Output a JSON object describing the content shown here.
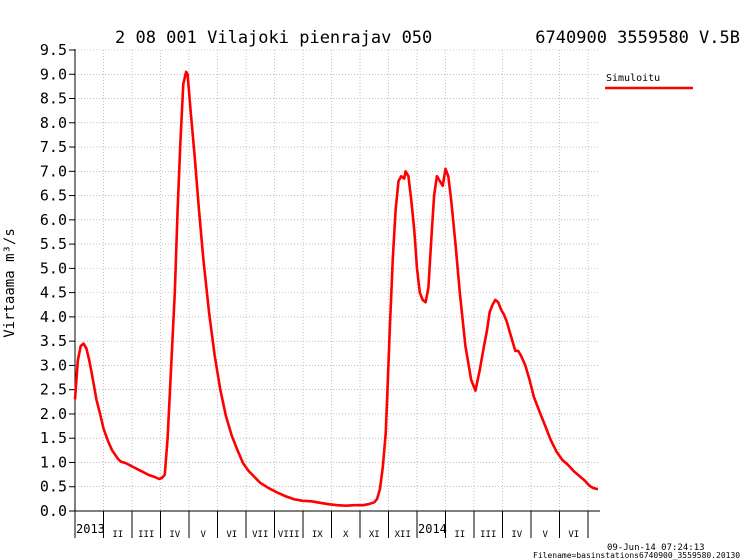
{
  "header": {
    "title": "2 08 001 Vilajoki pienrajav 050",
    "code": "6740900 3559580 V.5B"
  },
  "footer": {
    "date": "09-Jun-14 07:24:13",
    "filename": "Filename=basinstations6740900_3559580.20130"
  },
  "colors": {
    "series": "#ff0000",
    "grid": "#9a9a9a",
    "axis": "#000000"
  },
  "chart_data": {
    "type": "line",
    "ylabel": "Virtaama m³/s",
    "ylim": [
      0.0,
      9.5
    ],
    "yticks": [
      "0.0",
      "0.5",
      "1.0",
      "1.5",
      "2.0",
      "2.5",
      "3.0",
      "3.5",
      "4.0",
      "4.5",
      "5.0",
      "5.5",
      "6.0",
      "6.5",
      "7.0",
      "7.5",
      "8.0",
      "8.5",
      "9.0",
      "9.5"
    ],
    "x_unit": "month index (0 = start of Jan 2013)",
    "xlim": [
      0,
      18.35
    ],
    "month_labels": [
      "2013",
      "II",
      "III",
      "IV",
      "V",
      "VI",
      "VII",
      "VIII",
      "IX",
      "X",
      "XI",
      "XII",
      "2014",
      "II",
      "III",
      "IV",
      "V",
      "VI"
    ],
    "legend": {
      "position": "top-right",
      "entries": [
        "Simuloitu"
      ]
    },
    "grid": true,
    "series": [
      {
        "name": "Simuloitu",
        "color": "#ff0000",
        "points": [
          [
            0.0,
            2.3
          ],
          [
            0.1,
            3.1
          ],
          [
            0.2,
            3.4
          ],
          [
            0.3,
            3.45
          ],
          [
            0.4,
            3.35
          ],
          [
            0.5,
            3.1
          ],
          [
            0.6,
            2.8
          ],
          [
            0.75,
            2.3
          ],
          [
            0.9,
            1.95
          ],
          [
            1.0,
            1.7
          ],
          [
            1.15,
            1.45
          ],
          [
            1.3,
            1.25
          ],
          [
            1.5,
            1.08
          ],
          [
            1.6,
            1.02
          ],
          [
            1.8,
            0.98
          ],
          [
            2.0,
            0.92
          ],
          [
            2.2,
            0.86
          ],
          [
            2.4,
            0.8
          ],
          [
            2.6,
            0.74
          ],
          [
            2.8,
            0.7
          ],
          [
            2.95,
            0.66
          ],
          [
            3.05,
            0.68
          ],
          [
            3.15,
            0.75
          ],
          [
            3.25,
            1.5
          ],
          [
            3.35,
            2.7
          ],
          [
            3.5,
            4.5
          ],
          [
            3.6,
            6.2
          ],
          [
            3.7,
            7.6
          ],
          [
            3.8,
            8.8
          ],
          [
            3.9,
            9.05
          ],
          [
            3.95,
            9.0
          ],
          [
            4.05,
            8.3
          ],
          [
            4.2,
            7.3
          ],
          [
            4.35,
            6.2
          ],
          [
            4.5,
            5.2
          ],
          [
            4.7,
            4.1
          ],
          [
            4.9,
            3.2
          ],
          [
            5.1,
            2.5
          ],
          [
            5.3,
            1.95
          ],
          [
            5.5,
            1.55
          ],
          [
            5.7,
            1.25
          ],
          [
            5.9,
            0.98
          ],
          [
            6.1,
            0.82
          ],
          [
            6.3,
            0.7
          ],
          [
            6.5,
            0.58
          ],
          [
            6.8,
            0.47
          ],
          [
            7.1,
            0.38
          ],
          [
            7.4,
            0.3
          ],
          [
            7.7,
            0.24
          ],
          [
            8.0,
            0.21
          ],
          [
            8.3,
            0.2
          ],
          [
            8.6,
            0.17
          ],
          [
            8.9,
            0.14
          ],
          [
            9.2,
            0.12
          ],
          [
            9.5,
            0.11
          ],
          [
            9.8,
            0.12
          ],
          [
            10.1,
            0.12
          ],
          [
            10.3,
            0.14
          ],
          [
            10.5,
            0.18
          ],
          [
            10.6,
            0.25
          ],
          [
            10.7,
            0.45
          ],
          [
            10.8,
            0.9
          ],
          [
            10.9,
            1.6
          ],
          [
            10.95,
            2.3
          ],
          [
            11.05,
            3.8
          ],
          [
            11.15,
            5.2
          ],
          [
            11.25,
            6.2
          ],
          [
            11.35,
            6.8
          ],
          [
            11.45,
            6.9
          ],
          [
            11.55,
            6.85
          ],
          [
            11.6,
            7.0
          ],
          [
            11.7,
            6.9
          ],
          [
            11.8,
            6.4
          ],
          [
            11.9,
            5.8
          ],
          [
            12.0,
            5.0
          ],
          [
            12.1,
            4.5
          ],
          [
            12.2,
            4.35
          ],
          [
            12.3,
            4.3
          ],
          [
            12.4,
            4.6
          ],
          [
            12.5,
            5.6
          ],
          [
            12.6,
            6.5
          ],
          [
            12.7,
            6.9
          ],
          [
            12.8,
            6.8
          ],
          [
            12.9,
            6.7
          ],
          [
            13.0,
            7.05
          ],
          [
            13.1,
            6.9
          ],
          [
            13.2,
            6.4
          ],
          [
            13.35,
            5.5
          ],
          [
            13.5,
            4.5
          ],
          [
            13.7,
            3.4
          ],
          [
            13.9,
            2.7
          ],
          [
            14.05,
            2.48
          ],
          [
            14.2,
            2.9
          ],
          [
            14.35,
            3.4
          ],
          [
            14.45,
            3.7
          ],
          [
            14.55,
            4.1
          ],
          [
            14.65,
            4.25
          ],
          [
            14.75,
            4.35
          ],
          [
            14.85,
            4.3
          ],
          [
            14.95,
            4.15
          ],
          [
            15.05,
            4.05
          ],
          [
            15.15,
            3.9
          ],
          [
            15.25,
            3.7
          ],
          [
            15.35,
            3.5
          ],
          [
            15.45,
            3.3
          ],
          [
            15.55,
            3.3
          ],
          [
            15.65,
            3.2
          ],
          [
            15.8,
            3.0
          ],
          [
            15.95,
            2.7
          ],
          [
            16.1,
            2.35
          ],
          [
            16.3,
            2.05
          ],
          [
            16.5,
            1.75
          ],
          [
            16.7,
            1.45
          ],
          [
            16.9,
            1.22
          ],
          [
            17.1,
            1.05
          ],
          [
            17.3,
            0.95
          ],
          [
            17.5,
            0.82
          ],
          [
            17.7,
            0.72
          ],
          [
            17.9,
            0.62
          ],
          [
            18.0,
            0.55
          ],
          [
            18.1,
            0.5
          ],
          [
            18.2,
            0.47
          ],
          [
            18.35,
            0.45
          ],
          [
            18.5,
            0.44
          ],
          [
            18.6,
            0.43
          ],
          [
            18.75,
            0.42
          ],
          [
            18.85,
            0.4
          ],
          [
            18.95,
            0.38
          ],
          [
            19.05,
            0.37
          ]
        ]
      }
    ]
  }
}
